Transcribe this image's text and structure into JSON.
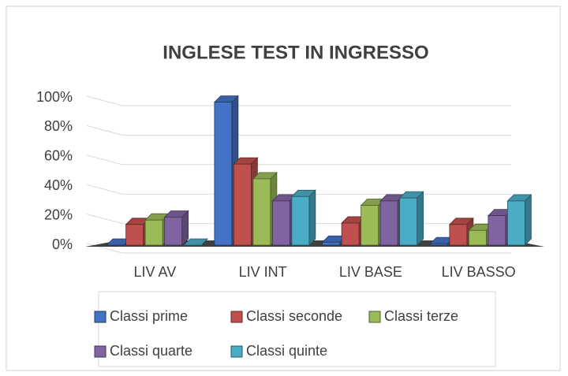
{
  "chart_data": {
    "type": "bar3d",
    "title": "INGLESE TEST IN INGRESSO",
    "categories": [
      "LIV AV",
      "LIV INT",
      "LIV BASE",
      "LIV BASSO"
    ],
    "series": [
      {
        "name": "Classi prime",
        "color": "#4472c4",
        "values": [
          0,
          97,
          2,
          1
        ]
      },
      {
        "name": "Classi seconde",
        "color": "#c0504d",
        "values": [
          14,
          55,
          15,
          14
        ]
      },
      {
        "name": "Classi terze",
        "color": "#9bbb59",
        "values": [
          17,
          45,
          27,
          10
        ]
      },
      {
        "name": "Classi quarte",
        "color": "#8064a2",
        "values": [
          19,
          30,
          30,
          20
        ]
      },
      {
        "name": "Classi quinte",
        "color": "#4bacc6",
        "values": [
          0,
          33,
          32,
          30
        ]
      }
    ],
    "ylim": [
      0,
      100
    ],
    "yticks": [
      {
        "value": 0,
        "label": "0%"
      },
      {
        "value": 20,
        "label": "20%"
      },
      {
        "value": 40,
        "label": "40%"
      },
      {
        "value": 60,
        "label": "60%"
      },
      {
        "value": 80,
        "label": "80%"
      },
      {
        "value": 100,
        "label": "100%"
      }
    ],
    "grid": true,
    "legend": "bottom"
  }
}
